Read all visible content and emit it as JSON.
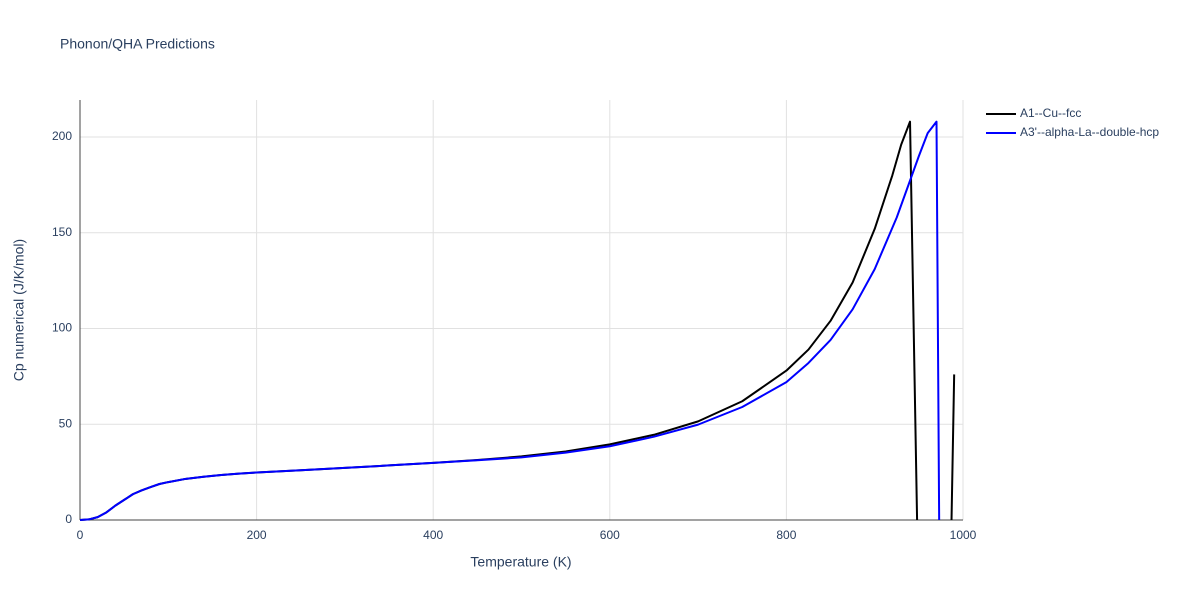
{
  "chart_data": {
    "type": "line",
    "title": "Phonon/QHA Predictions",
    "x_label": "Temperature (K)",
    "y_label": "Cp numerical (J/K/mol)",
    "xlim": [
      0,
      1000
    ],
    "ylim": [
      0,
      219.3
    ],
    "xticks": [
      0,
      200,
      400,
      600,
      800,
      1000
    ],
    "yticks": [
      0,
      50,
      100,
      150,
      200
    ],
    "grid": true,
    "series": [
      {
        "name": "A1--Cu--fcc",
        "color": "#000000",
        "x": [
          0,
          10,
          20,
          30,
          40,
          50,
          60,
          70,
          80,
          90,
          100,
          120,
          140,
          160,
          180,
          200,
          250,
          300,
          350,
          400,
          450,
          500,
          550,
          600,
          650,
          700,
          750,
          800,
          825,
          850,
          875,
          900,
          920,
          930,
          940,
          948,
          970,
          987,
          990
        ],
        "values": [
          0,
          0.3,
          1.5,
          4,
          7.5,
          10.5,
          13.5,
          15.5,
          17.2,
          18.8,
          19.8,
          21.5,
          22.6,
          23.5,
          24.2,
          24.8,
          26,
          27.2,
          28.5,
          29.8,
          31.3,
          33.2,
          35.8,
          39.5,
          44.5,
          51.5,
          62,
          78,
          89,
          104,
          124,
          152,
          180,
          196,
          208,
          0,
          null,
          0,
          76
        ]
      },
      {
        "name": "A3'--alpha-La--double-hcp",
        "color": "#0000ff",
        "x": [
          0,
          10,
          20,
          30,
          40,
          50,
          60,
          70,
          80,
          90,
          100,
          120,
          140,
          160,
          180,
          200,
          250,
          300,
          350,
          400,
          450,
          500,
          550,
          600,
          650,
          700,
          750,
          800,
          825,
          850,
          875,
          900,
          925,
          950,
          960,
          970,
          973
        ],
        "values": [
          0,
          0.3,
          1.5,
          4,
          7.5,
          10.5,
          13.5,
          15.5,
          17.2,
          18.8,
          19.8,
          21.5,
          22.6,
          23.5,
          24.2,
          24.8,
          26,
          27.2,
          28.5,
          29.8,
          31.2,
          32.7,
          35.2,
          38.5,
          43.5,
          49.8,
          59,
          72,
          82,
          94,
          110,
          131,
          158,
          190,
          202,
          208,
          0
        ]
      }
    ]
  }
}
